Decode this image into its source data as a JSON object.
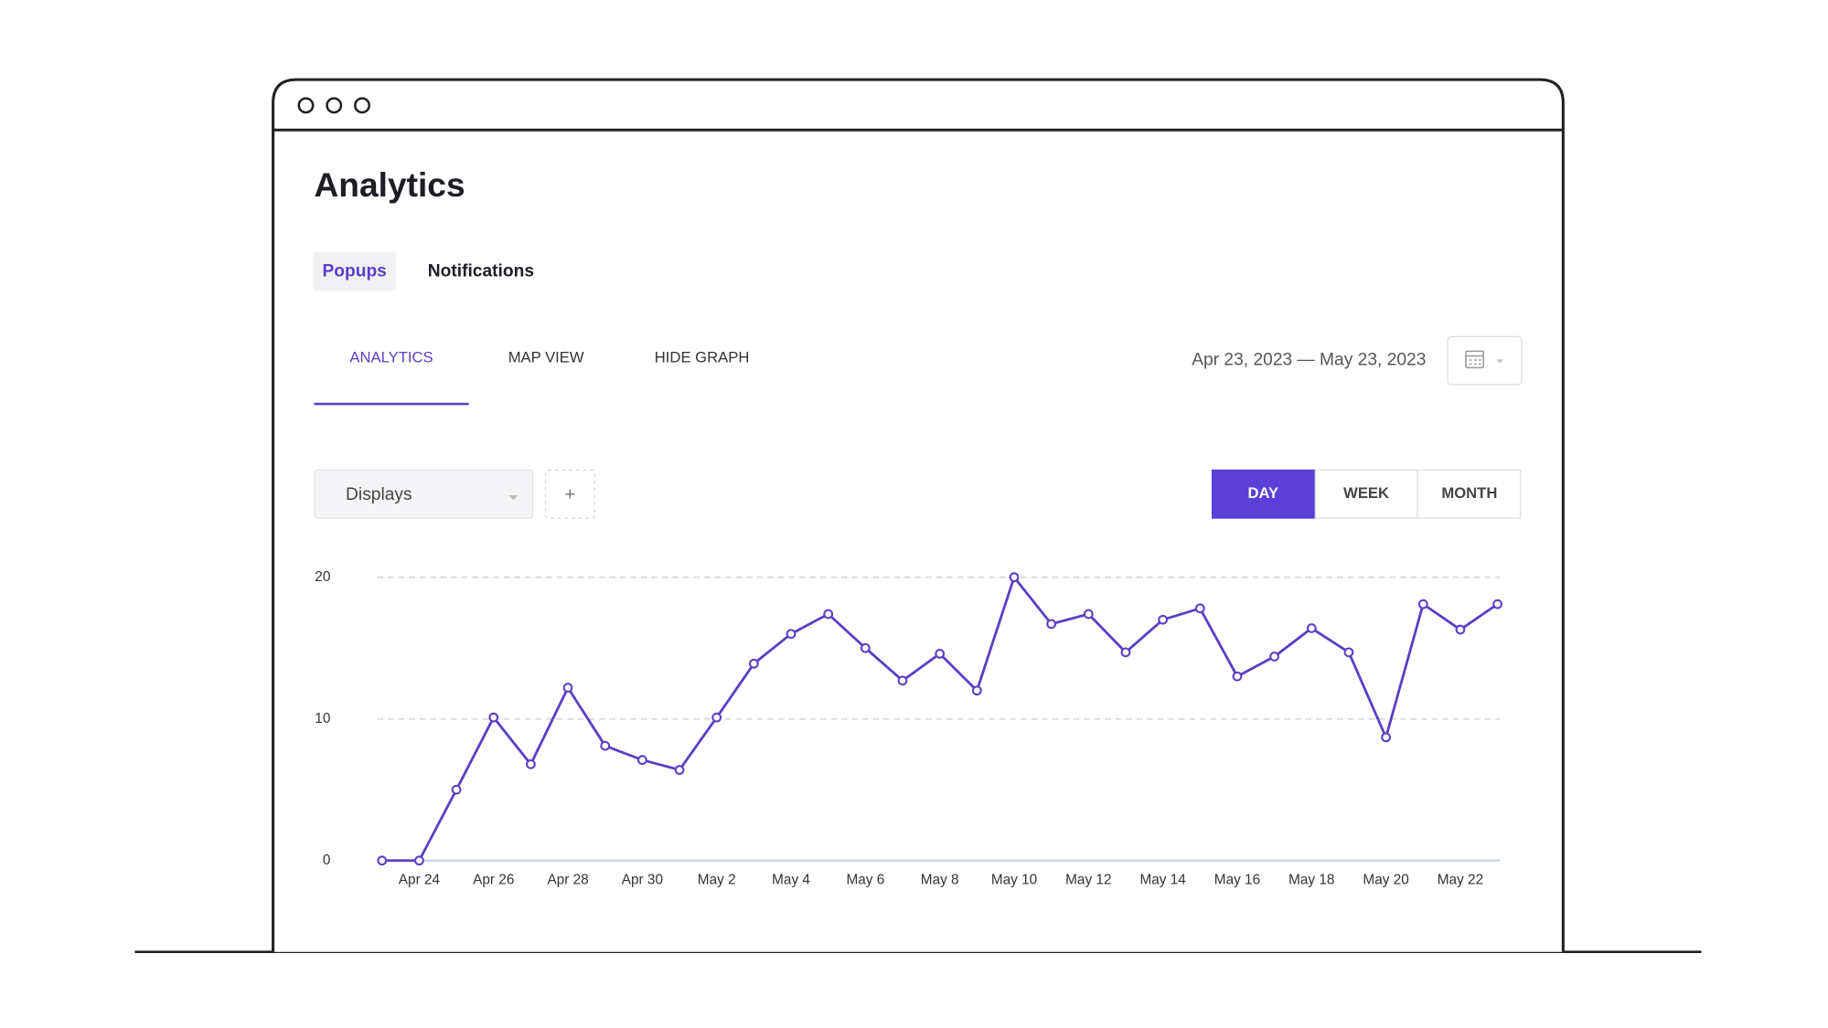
{
  "header": {
    "title": "Analytics"
  },
  "tabs": [
    "Popups",
    "Notifications"
  ],
  "view_tabs": [
    "ANALYTICS",
    "MAP VIEW",
    "HIDE GRAPH"
  ],
  "date_range": "Apr 23, 2023 — May 23, 2023",
  "metric_select": "Displays",
  "add_button": "+",
  "granularity": [
    "DAY",
    "WEEK",
    "MONTH"
  ],
  "chart_data": {
    "type": "line",
    "categories": [
      null,
      "Apr 24",
      null,
      "Apr 26",
      null,
      "Apr 28",
      null,
      "Apr 30",
      null,
      "May 2",
      null,
      "May 4",
      null,
      "May 6",
      null,
      "May 8",
      null,
      "May 10",
      null,
      "May 12",
      null,
      "May 14",
      null,
      "May 16",
      null,
      "May 18",
      null,
      "May 20",
      null,
      "May 22",
      null
    ],
    "values": [
      0,
      0,
      5,
      10.1,
      6.8,
      12.2,
      8.1,
      7.1,
      6.4,
      10.1,
      13.9,
      16.0,
      17.4,
      15.0,
      12.7,
      14.6,
      12.0,
      20,
      16.7,
      17.4,
      14.7,
      17.0,
      17.8,
      13.0,
      14.4,
      16.4,
      14.7,
      8.7,
      18.1,
      16.3,
      18.1
    ],
    "color": "#5b3fc4",
    "ylim": [
      0,
      20
    ],
    "yticks": [
      0,
      10,
      20
    ],
    "grid": true
  }
}
